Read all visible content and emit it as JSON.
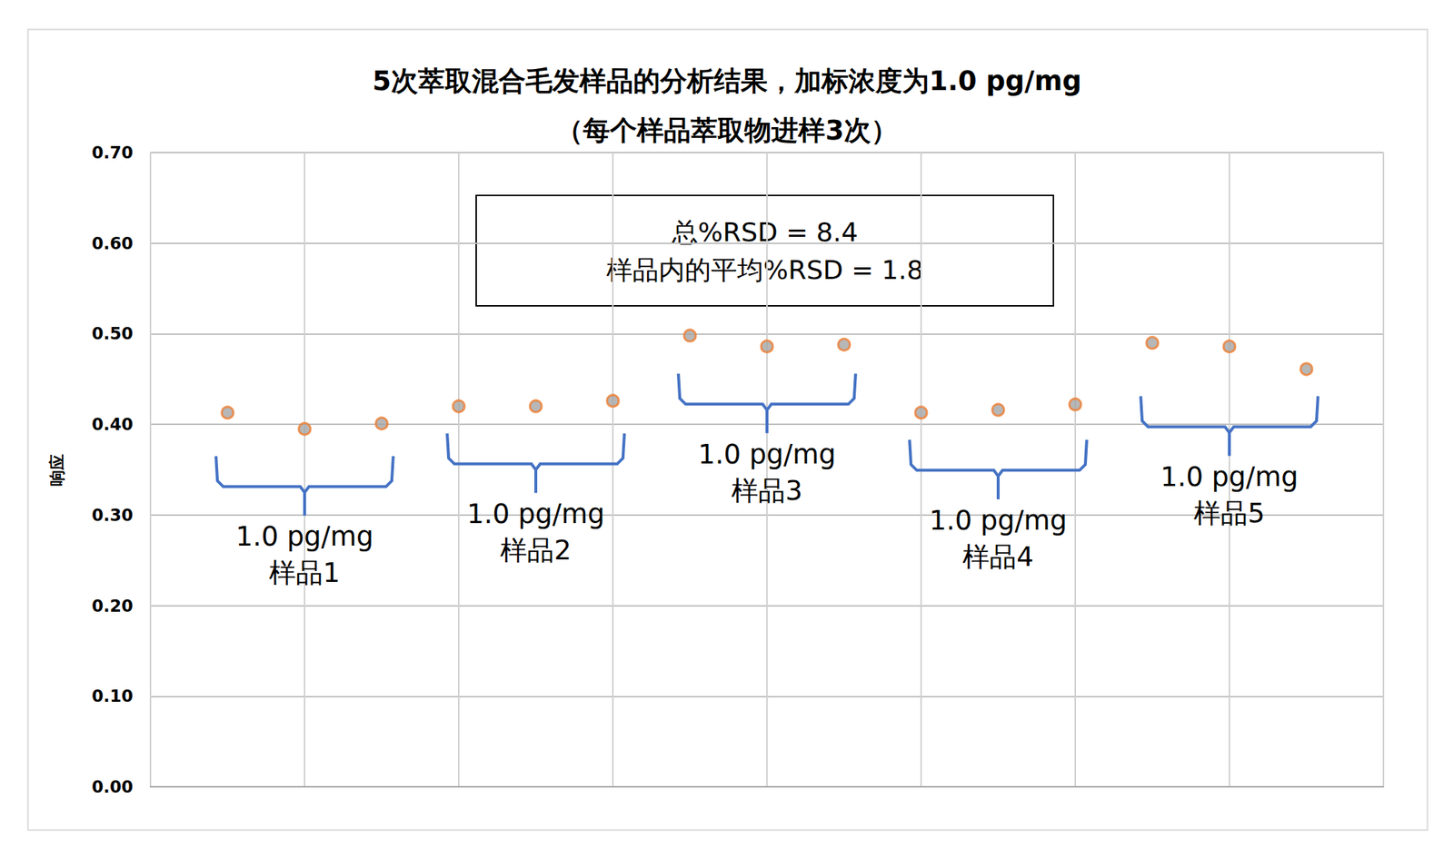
{
  "chart_data": {
    "type": "scatter",
    "title": "5次萃取混合毛发样品的分析结果，加标浓度为1.0 pg/mg\n（每个样品萃取物进样3次）",
    "y_label": "响应",
    "note": "总%RSD = 8.4\n样品内的平均%RSD = 1.8",
    "groups": [
      {
        "label": "1.0 pg/mg\n样品1",
        "x": [
          1,
          2,
          3
        ],
        "values": [
          0.413,
          0.395,
          0.401
        ]
      },
      {
        "label": "1.0 pg/mg\n样品2",
        "x": [
          4,
          5,
          6
        ],
        "values": [
          0.42,
          0.42,
          0.426
        ]
      },
      {
        "label": "1.0 pg/mg\n样品3",
        "x": [
          7,
          8,
          9
        ],
        "values": [
          0.498,
          0.486,
          0.488
        ]
      },
      {
        "label": "1.0 pg/mg\n样品4",
        "x": [
          10,
          11,
          12
        ],
        "values": [
          0.413,
          0.416,
          0.422
        ]
      },
      {
        "label": "1.0 pg/mg\n样品5",
        "x": [
          13,
          14,
          15
        ],
        "values": [
          0.49,
          0.486,
          0.461
        ]
      }
    ],
    "color": "#ed7d31",
    "marker": "circle",
    "xlim": [
      0,
      16
    ],
    "xticks": [
      0,
      2,
      4,
      6,
      8,
      10,
      12,
      14,
      16
    ],
    "ylim": [
      0,
      0.7
    ],
    "yticks": [
      {
        "value": 0,
        "label": "0.00"
      },
      {
        "value": 0.1,
        "label": "0.10"
      },
      {
        "value": 0.2,
        "label": "0.20"
      },
      {
        "value": 0.3,
        "label": "0.30"
      },
      {
        "value": 0.4,
        "label": "0.40"
      },
      {
        "value": 0.5,
        "label": "0.50"
      },
      {
        "value": 0.6,
        "label": "0.60"
      },
      {
        "value": 0.7,
        "label": "0.70"
      }
    ],
    "grid": true,
    "tick_labels": "y"
  }
}
